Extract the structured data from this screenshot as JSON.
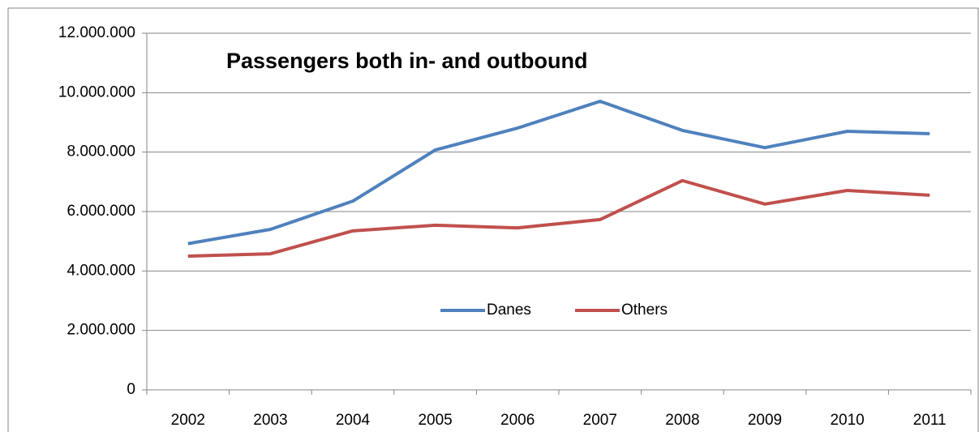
{
  "chart_data": {
    "type": "line",
    "title": "Passengers both in- and outbound",
    "categories": [
      "2002",
      "2003",
      "2004",
      "2005",
      "2006",
      "2007",
      "2008",
      "2009",
      "2010",
      "2011"
    ],
    "series": [
      {
        "name": "Danes",
        "color": "#4f81bd",
        "values": [
          4920000,
          5400000,
          6350000,
          8070000,
          8810000,
          9710000,
          8730000,
          8150000,
          8700000,
          8620000
        ]
      },
      {
        "name": "Others",
        "color": "#c0504d",
        "values": [
          4500000,
          4580000,
          5350000,
          5540000,
          5450000,
          5730000,
          7040000,
          6250000,
          6710000,
          6550000
        ]
      }
    ],
    "ylim": [
      0,
      12000000
    ],
    "yticks": [
      0,
      {
        "value": 2000000,
        "label": "2.000.000"
      },
      {
        "value": 4000000,
        "label": "4.000.000"
      },
      {
        "value": 6000000,
        "label": "6.000.000"
      },
      {
        "value": 8000000,
        "label": "8.000.000"
      },
      {
        "value": 10000000,
        "label": "10.000.000"
      },
      {
        "value": 12000000,
        "label": "12.000.000"
      }
    ],
    "grid": true
  }
}
